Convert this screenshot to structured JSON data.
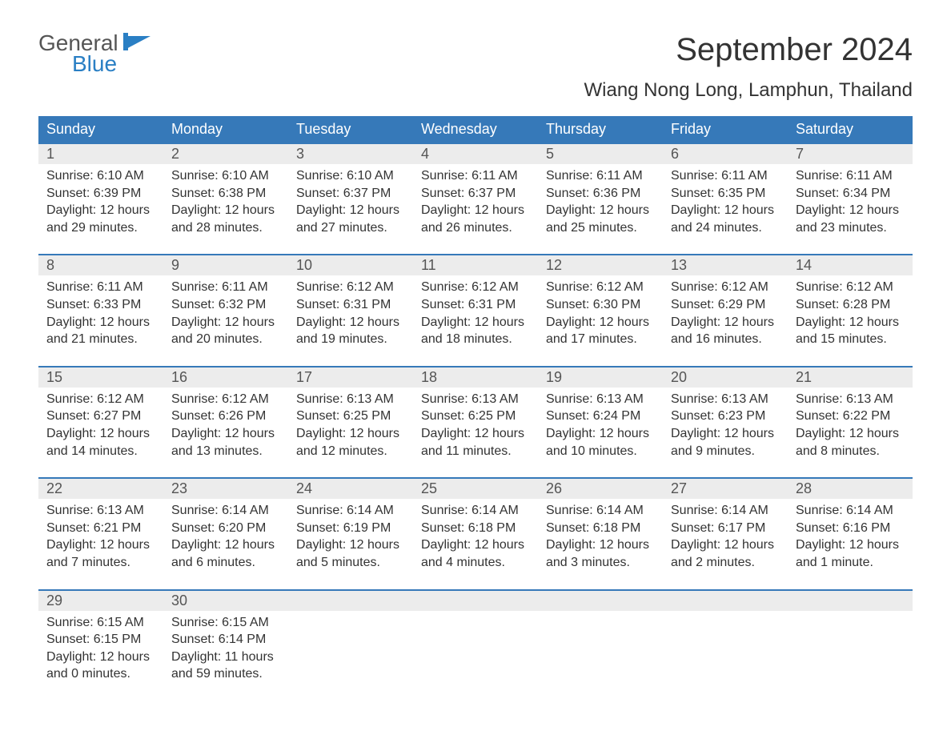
{
  "logo": {
    "line1": "General",
    "line2": "Blue"
  },
  "title": "September 2024",
  "location": "Wiang Nong Long, Lamphun, Thailand",
  "colors": {
    "header_bg": "#3679b9",
    "header_text": "#ffffff",
    "daynum_bg": "#ececec",
    "text": "#333333",
    "logo_blue": "#2a7fc4"
  },
  "typography": {
    "title_fontsize": 40,
    "location_fontsize": 24,
    "dow_fontsize": 18,
    "body_fontsize": 16
  },
  "calendar": {
    "type": "table",
    "days_of_week": [
      "Sunday",
      "Monday",
      "Tuesday",
      "Wednesday",
      "Thursday",
      "Friday",
      "Saturday"
    ],
    "weeks": [
      [
        {
          "n": "1",
          "sunrise": "Sunrise: 6:10 AM",
          "sunset": "Sunset: 6:39 PM",
          "dl1": "Daylight: 12 hours",
          "dl2": "and 29 minutes."
        },
        {
          "n": "2",
          "sunrise": "Sunrise: 6:10 AM",
          "sunset": "Sunset: 6:38 PM",
          "dl1": "Daylight: 12 hours",
          "dl2": "and 28 minutes."
        },
        {
          "n": "3",
          "sunrise": "Sunrise: 6:10 AM",
          "sunset": "Sunset: 6:37 PM",
          "dl1": "Daylight: 12 hours",
          "dl2": "and 27 minutes."
        },
        {
          "n": "4",
          "sunrise": "Sunrise: 6:11 AM",
          "sunset": "Sunset: 6:37 PM",
          "dl1": "Daylight: 12 hours",
          "dl2": "and 26 minutes."
        },
        {
          "n": "5",
          "sunrise": "Sunrise: 6:11 AM",
          "sunset": "Sunset: 6:36 PM",
          "dl1": "Daylight: 12 hours",
          "dl2": "and 25 minutes."
        },
        {
          "n": "6",
          "sunrise": "Sunrise: 6:11 AM",
          "sunset": "Sunset: 6:35 PM",
          "dl1": "Daylight: 12 hours",
          "dl2": "and 24 minutes."
        },
        {
          "n": "7",
          "sunrise": "Sunrise: 6:11 AM",
          "sunset": "Sunset: 6:34 PM",
          "dl1": "Daylight: 12 hours",
          "dl2": "and 23 minutes."
        }
      ],
      [
        {
          "n": "8",
          "sunrise": "Sunrise: 6:11 AM",
          "sunset": "Sunset: 6:33 PM",
          "dl1": "Daylight: 12 hours",
          "dl2": "and 21 minutes."
        },
        {
          "n": "9",
          "sunrise": "Sunrise: 6:11 AM",
          "sunset": "Sunset: 6:32 PM",
          "dl1": "Daylight: 12 hours",
          "dl2": "and 20 minutes."
        },
        {
          "n": "10",
          "sunrise": "Sunrise: 6:12 AM",
          "sunset": "Sunset: 6:31 PM",
          "dl1": "Daylight: 12 hours",
          "dl2": "and 19 minutes."
        },
        {
          "n": "11",
          "sunrise": "Sunrise: 6:12 AM",
          "sunset": "Sunset: 6:31 PM",
          "dl1": "Daylight: 12 hours",
          "dl2": "and 18 minutes."
        },
        {
          "n": "12",
          "sunrise": "Sunrise: 6:12 AM",
          "sunset": "Sunset: 6:30 PM",
          "dl1": "Daylight: 12 hours",
          "dl2": "and 17 minutes."
        },
        {
          "n": "13",
          "sunrise": "Sunrise: 6:12 AM",
          "sunset": "Sunset: 6:29 PM",
          "dl1": "Daylight: 12 hours",
          "dl2": "and 16 minutes."
        },
        {
          "n": "14",
          "sunrise": "Sunrise: 6:12 AM",
          "sunset": "Sunset: 6:28 PM",
          "dl1": "Daylight: 12 hours",
          "dl2": "and 15 minutes."
        }
      ],
      [
        {
          "n": "15",
          "sunrise": "Sunrise: 6:12 AM",
          "sunset": "Sunset: 6:27 PM",
          "dl1": "Daylight: 12 hours",
          "dl2": "and 14 minutes."
        },
        {
          "n": "16",
          "sunrise": "Sunrise: 6:12 AM",
          "sunset": "Sunset: 6:26 PM",
          "dl1": "Daylight: 12 hours",
          "dl2": "and 13 minutes."
        },
        {
          "n": "17",
          "sunrise": "Sunrise: 6:13 AM",
          "sunset": "Sunset: 6:25 PM",
          "dl1": "Daylight: 12 hours",
          "dl2": "and 12 minutes."
        },
        {
          "n": "18",
          "sunrise": "Sunrise: 6:13 AM",
          "sunset": "Sunset: 6:25 PM",
          "dl1": "Daylight: 12 hours",
          "dl2": "and 11 minutes."
        },
        {
          "n": "19",
          "sunrise": "Sunrise: 6:13 AM",
          "sunset": "Sunset: 6:24 PM",
          "dl1": "Daylight: 12 hours",
          "dl2": "and 10 minutes."
        },
        {
          "n": "20",
          "sunrise": "Sunrise: 6:13 AM",
          "sunset": "Sunset: 6:23 PM",
          "dl1": "Daylight: 12 hours",
          "dl2": "and 9 minutes."
        },
        {
          "n": "21",
          "sunrise": "Sunrise: 6:13 AM",
          "sunset": "Sunset: 6:22 PM",
          "dl1": "Daylight: 12 hours",
          "dl2": "and 8 minutes."
        }
      ],
      [
        {
          "n": "22",
          "sunrise": "Sunrise: 6:13 AM",
          "sunset": "Sunset: 6:21 PM",
          "dl1": "Daylight: 12 hours",
          "dl2": "and 7 minutes."
        },
        {
          "n": "23",
          "sunrise": "Sunrise: 6:14 AM",
          "sunset": "Sunset: 6:20 PM",
          "dl1": "Daylight: 12 hours",
          "dl2": "and 6 minutes."
        },
        {
          "n": "24",
          "sunrise": "Sunrise: 6:14 AM",
          "sunset": "Sunset: 6:19 PM",
          "dl1": "Daylight: 12 hours",
          "dl2": "and 5 minutes."
        },
        {
          "n": "25",
          "sunrise": "Sunrise: 6:14 AM",
          "sunset": "Sunset: 6:18 PM",
          "dl1": "Daylight: 12 hours",
          "dl2": "and 4 minutes."
        },
        {
          "n": "26",
          "sunrise": "Sunrise: 6:14 AM",
          "sunset": "Sunset: 6:18 PM",
          "dl1": "Daylight: 12 hours",
          "dl2": "and 3 minutes."
        },
        {
          "n": "27",
          "sunrise": "Sunrise: 6:14 AM",
          "sunset": "Sunset: 6:17 PM",
          "dl1": "Daylight: 12 hours",
          "dl2": "and 2 minutes."
        },
        {
          "n": "28",
          "sunrise": "Sunrise: 6:14 AM",
          "sunset": "Sunset: 6:16 PM",
          "dl1": "Daylight: 12 hours",
          "dl2": "and 1 minute."
        }
      ],
      [
        {
          "n": "29",
          "sunrise": "Sunrise: 6:15 AM",
          "sunset": "Sunset: 6:15 PM",
          "dl1": "Daylight: 12 hours",
          "dl2": "and 0 minutes."
        },
        {
          "n": "30",
          "sunrise": "Sunrise: 6:15 AM",
          "sunset": "Sunset: 6:14 PM",
          "dl1": "Daylight: 11 hours",
          "dl2": "and 59 minutes."
        },
        null,
        null,
        null,
        null,
        null
      ]
    ]
  }
}
